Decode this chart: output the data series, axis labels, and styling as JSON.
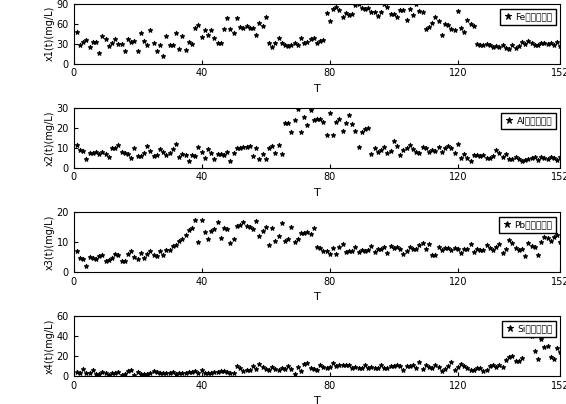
{
  "subplots": [
    {
      "ylabel": "x1(t)(mg/L)",
      "xlabel": "T",
      "ylim": [
        0,
        90
      ],
      "yticks": [
        0,
        30,
        60,
        90
      ],
      "legend": "Fe元素浓度値"
    },
    {
      "ylabel": "x2(t)(mg/L)",
      "xlabel": "T",
      "ylim": [
        0,
        30
      ],
      "yticks": [
        0,
        10,
        20,
        30
      ],
      "legend": "Al元素浓度値"
    },
    {
      "ylabel": "x3(t)(mg/L)",
      "xlabel": "T",
      "ylim": [
        0,
        20
      ],
      "yticks": [
        0,
        10,
        20
      ],
      "legend": "Pb元素浓度値"
    },
    {
      "ylabel": "x4(t)(mg/L)",
      "xlabel": "T",
      "ylim": [
        0,
        60
      ],
      "yticks": [
        0,
        20,
        40,
        60
      ],
      "legend": "Si元素浓度値"
    }
  ],
  "xticks": [
    0,
    40,
    80,
    120,
    152
  ],
  "xlim": [
    0,
    152
  ],
  "marker": "*",
  "markersize": 3.5,
  "color": "black",
  "figsize": [
    5.66,
    4.04
  ],
  "dpi": 100
}
